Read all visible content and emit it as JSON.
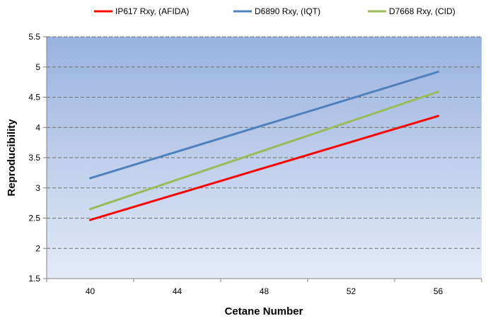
{
  "chart_data": {
    "type": "line",
    "title": "",
    "xlabel": "Cetane Number",
    "ylabel": "Reproducibility",
    "xlim": [
      38,
      58
    ],
    "ylim": [
      1.5,
      5.5
    ],
    "x_ticks": [
      40,
      44,
      48,
      52,
      56
    ],
    "y_ticks": [
      1.5,
      2,
      2.5,
      3,
      3.5,
      4,
      4.5,
      5,
      5.5
    ],
    "y_tick_labels": [
      "1.5",
      "2",
      "2.5",
      "3",
      "3.5",
      "4",
      "4.5",
      "5",
      "5.5"
    ],
    "grid": "horizontal dashed",
    "legend": "top",
    "series": [
      {
        "name": "IP617 Rxy, (AFIDA)",
        "color": "#ff0000",
        "x": [
          40,
          56
        ],
        "y": [
          2.47,
          4.19
        ]
      },
      {
        "name": "D6890 Rxy, (IQT)",
        "color": "#4f81bd",
        "x": [
          40,
          56
        ],
        "y": [
          3.16,
          4.92
        ]
      },
      {
        "name": "D7668 Rxy, (CID)",
        "color": "#9bbb59",
        "x": [
          40,
          56
        ],
        "y": [
          2.65,
          4.59
        ]
      }
    ],
    "plot_background": [
      "#98b2e0",
      "#e4eaf6"
    ]
  }
}
